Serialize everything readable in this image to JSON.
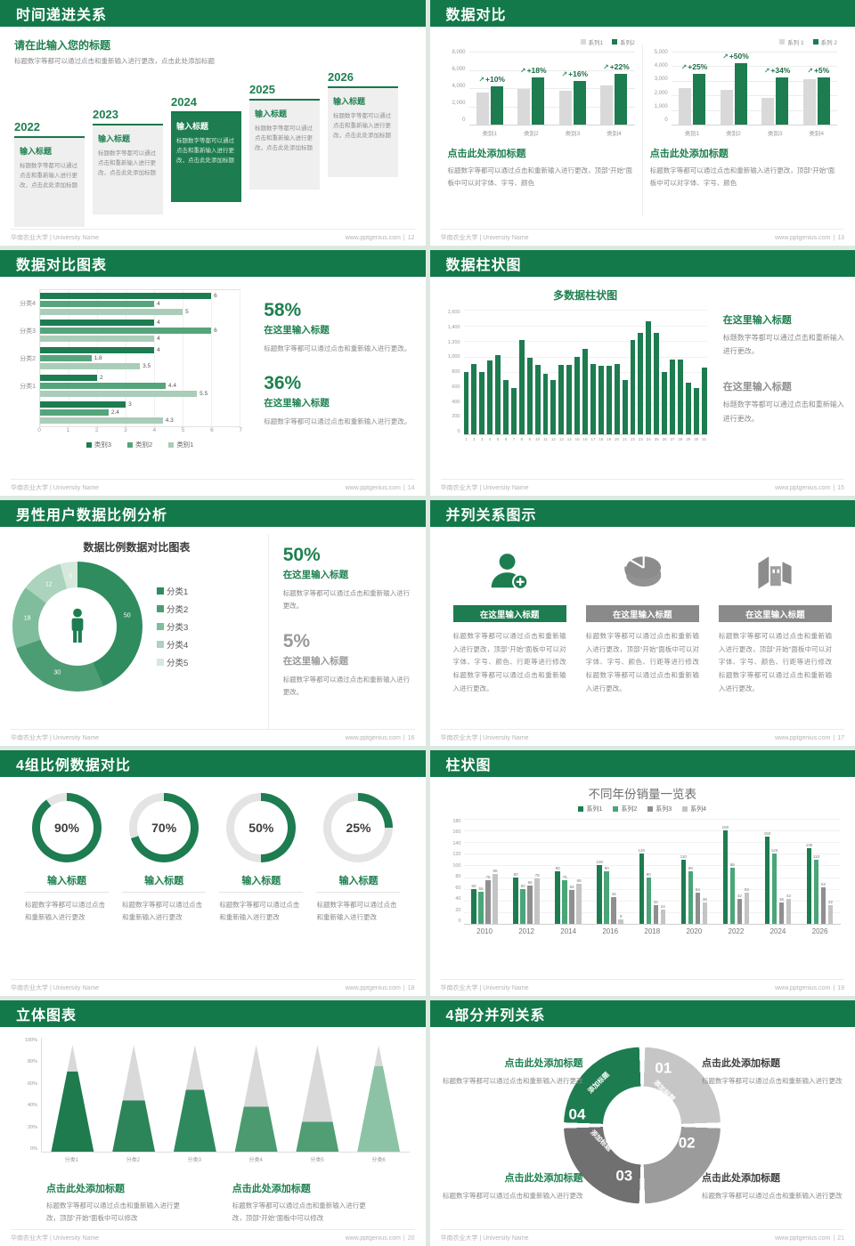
{
  "colors": {
    "header": "#14794a",
    "green_dark": "#1d7c50",
    "green_mid": "#55a47c",
    "green_light": "#a9cdb8",
    "gray_bar": "#d9d9d9",
    "gray_series": "#8f8f8f",
    "gray_light": "#c4c4c4"
  },
  "icons": {
    "growth_arrow": "↗"
  },
  "footer": {
    "org": "华南农业大学 | University Name",
    "site": "www.pptgenius.com"
  },
  "slides": [
    {
      "title": "时间递进关系",
      "page": "12",
      "heading": "请在此输入您的标题",
      "intro": "标题数字等都可以通过点击和重新输入进行更改，点击此处添加标题",
      "items": [
        {
          "year": "2022",
          "card_title": "输入标题",
          "card_text": "标题数字等都可以通过点击和重新输入进行更改，点击此处添加标题",
          "active": false
        },
        {
          "year": "2023",
          "card_title": "输入标题",
          "card_text": "标题数字等都可以通过点击和重新输入进行更改，点击此处添加标题",
          "active": false
        },
        {
          "year": "2024",
          "card_title": "输入标题",
          "card_text": "标题数字等都可以通过点击和重新输入进行更改，点击此处添加标题",
          "active": true
        },
        {
          "year": "2025",
          "card_title": "输入标题",
          "card_text": "标题数字等都可以通过点击和重新输入进行更改，点击此处添加标题",
          "active": false
        },
        {
          "year": "2026",
          "card_title": "输入标题",
          "card_text": "标题数字等都可以通过点击和重新输入进行更改，点击此处添加标题",
          "active": false
        }
      ]
    },
    {
      "title": "数据对比",
      "page": "13",
      "chart_data": [
        {
          "type": "bar",
          "legend": [
            "系列1",
            "系列2"
          ],
          "yticks": [
            "8,000",
            "6,000",
            "4,000",
            "2,000",
            "0"
          ],
          "ymax": 8000,
          "categories": [
            "类别1",
            "类别2",
            "类别3",
            "类别4"
          ],
          "series": [
            {
              "name": "系列1",
              "values": [
                3500,
                3900,
                3700,
                4300
              ]
            },
            {
              "name": "系列2",
              "values": [
                4200,
                5200,
                4800,
                5600
              ]
            }
          ],
          "growth": [
            "+10%",
            "+18%",
            "+16%",
            "+22%"
          ]
        },
        {
          "type": "bar",
          "legend": [
            "系列 1",
            "系列 2"
          ],
          "yticks": [
            "5,000",
            "4,000",
            "3,000",
            "2,000",
            "1,000",
            "0"
          ],
          "ymax": 5000,
          "categories": [
            "类别1",
            "类别2",
            "类别3",
            "类别4"
          ],
          "series": [
            {
              "name": "系列 1",
              "values": [
                2500,
                2350,
                1800,
                3100
              ]
            },
            {
              "name": "系列 2",
              "values": [
                3500,
                4200,
                3250,
                3250
              ]
            }
          ],
          "growth": [
            "+25%",
            "+50%",
            "+34%",
            "+5%"
          ]
        }
      ],
      "blocks": [
        {
          "heading": "点击此处添加标题",
          "text": "标题数字等都可以通过点击和重新输入进行更改，顶部“开始”面板中可以对字体、字号、颜色"
        },
        {
          "heading": "点击此处添加标题",
          "text": "标题数字等都可以通过点击和重新输入进行更改，顶部“开始”面板中可以对字体、字号、颜色"
        }
      ]
    },
    {
      "title": "数据对比图表",
      "page": "14",
      "chart_data": {
        "type": "hbar",
        "xmax": 7,
        "xticks": [
          "0",
          "1",
          "2",
          "3",
          "4",
          "5",
          "6",
          "7"
        ],
        "legend": [
          "类别3",
          "类别2",
          "类别1"
        ],
        "groups": [
          {
            "label": "分类4",
            "values": [
              6,
              4,
              5
            ]
          },
          {
            "label": "分类3",
            "values": [
              4,
              6,
              4
            ]
          },
          {
            "label": "分类2",
            "values": [
              4,
              1.8,
              3.5
            ]
          },
          {
            "label": "分类1",
            "values": [
              2,
              4.4,
              5.5
            ]
          },
          {
            "label": "",
            "values": [
              3,
              2.4,
              4.3
            ]
          }
        ]
      },
      "stats": [
        {
          "pct": "58%",
          "sub": "在这里输入标题",
          "text": "标题数字等都可以通过点击和重新输入进行更改。"
        },
        {
          "pct": "36%",
          "sub": "在这里输入标题",
          "text": "标题数字等都可以通过点击和重新输入进行更改。"
        }
      ]
    },
    {
      "title": "数据柱状图",
      "page": "15",
      "chart_data": {
        "type": "bar",
        "title": "多数据柱状图",
        "ymax": 1600,
        "yticks": [
          "1,600",
          "1,400",
          "1,200",
          "1,000",
          "800",
          "600",
          "400",
          "200",
          "0"
        ],
        "categories": [
          "1",
          "2",
          "3",
          "4",
          "5",
          "6",
          "7",
          "8",
          "9",
          "10",
          "11",
          "12",
          "13",
          "14",
          "15",
          "16",
          "17",
          "18",
          "19",
          "20",
          "21",
          "22",
          "23",
          "24",
          "25",
          "26",
          "27",
          "28",
          "29",
          "30",
          "31"
        ],
        "values": [
          800,
          900,
          800,
          950,
          1020,
          700,
          600,
          1210,
          980,
          890,
          780,
          700,
          890,
          890,
          990,
          1100,
          900,
          880,
          880,
          900,
          700,
          1210,
          1300,
          1450,
          1300,
          800,
          960,
          960,
          660,
          600,
          860
        ]
      },
      "blocks": [
        {
          "heading": "在这里输入标题",
          "text": "标题数字等都可以通过点击和重新输入进行更改。"
        },
        {
          "heading": "在这里输入标题",
          "text": "标题数字等都可以通过点击和重新输入进行更改。"
        }
      ]
    },
    {
      "title": "男性用户数据比例分析",
      "page": "16",
      "chart_data": {
        "type": "pie",
        "title": "数据比例数据对比图表",
        "labels": [
          "分类1",
          "分类2",
          "分类3",
          "分类4",
          "分类5"
        ],
        "values": [
          50,
          30,
          18,
          12,
          5
        ],
        "colors": [
          "#2f8c5e",
          "#4d9d74",
          "#7fbd9c",
          "#abd3bd",
          "#d5e9dd"
        ]
      },
      "stats": [
        {
          "pct": "50%",
          "sub": "在这里输入标题",
          "text": "标题数字等都可以通过点击和重新输入进行更改。"
        },
        {
          "pct": "5%",
          "sub": "在这里输入标题",
          "text": "标题数字等都可以通过点击和重新输入进行更改。"
        }
      ]
    },
    {
      "title": "并列关系图示",
      "page": "17",
      "columns": [
        {
          "icon": "nurse-add-icon",
          "title": "在这里输入标题",
          "accent": true,
          "text": "标题数字等都可以通过点击和重新输入进行更改，顶部“开始”面板中可以对字体、字号、颜色、行距等进行修改标题数字等都可以通过点击和重新输入进行更改。"
        },
        {
          "icon": "pie-chart-3d-icon",
          "title": "在这里输入标题",
          "accent": false,
          "text": "标题数字等都可以通过点击和重新输入进行更改，顶部“开始”面板中可以对字体、字号、颜色、行距等进行修改标题数字等都可以通过点击和重新输入进行更改。"
        },
        {
          "icon": "building-icon",
          "title": "在这里输入标题",
          "accent": false,
          "text": "标题数字等都可以通过点击和重新输入进行更改，顶部“开始”面板中可以对字体、字号、颜色、行距等进行修改标题数字等都可以通过点击和重新输入进行更改。"
        }
      ]
    },
    {
      "title": "4组比例数据对比",
      "page": "18",
      "rings": [
        {
          "pct": 90,
          "label": "90%",
          "title": "输入标题",
          "text": "标题数字等都可以通过点击和重新输入进行更改"
        },
        {
          "pct": 70,
          "label": "70%",
          "title": "输入标题",
          "text": "标题数字等都可以通过点击和重新输入进行更改"
        },
        {
          "pct": 50,
          "label": "50%",
          "title": "输入标题",
          "text": "标题数字等都可以通过点击和重新输入进行更改"
        },
        {
          "pct": 25,
          "label": "25%",
          "title": "输入标题",
          "text": "标题数字等都可以通过点击和重新输入进行更改"
        }
      ]
    },
    {
      "title": "柱状图",
      "page": "19",
      "chart_data": {
        "type": "bar",
        "title": "不同年份销量一览表",
        "ymax": 180,
        "yticks": [
          "180",
          "160",
          "140",
          "120",
          "100",
          "80",
          "60",
          "40",
          "20",
          "0"
        ],
        "categories": [
          "2010",
          "2012",
          "2014",
          "2016",
          "2018",
          "2020",
          "2022",
          "2024",
          "2026"
        ],
        "series": [
          {
            "name": "系列1",
            "color": "#1d7c50",
            "values": [
              60,
              80,
              90,
              100,
              120,
              110,
              160,
              150,
              130
            ]
          },
          {
            "name": "系列2",
            "color": "#4aa578",
            "values": [
              55,
              60,
              75,
              90,
              80,
              90,
              96,
              120,
              110
            ]
          },
          {
            "name": "系列3",
            "color": "#8f8f8f",
            "values": [
              75,
              65,
              58,
              46,
              32,
              54,
              42,
              36,
              62
            ]
          },
          {
            "name": "系列4",
            "color": "#c4c4c4",
            "values": [
              85,
              78,
              68,
              8,
              24,
              36,
              53,
              42,
              32
            ]
          }
        ]
      }
    },
    {
      "title": "立体图表",
      "page": "20",
      "chart_data": {
        "type": "cone",
        "yticks": [
          "100%",
          "80%",
          "60%",
          "40%",
          "20%",
          "0%"
        ],
        "cones": [
          {
            "label": "分类1",
            "fill": 75,
            "color": "#1e7b4e"
          },
          {
            "label": "分类2",
            "fill": 48,
            "color": "#2c8459"
          },
          {
            "label": "分类3",
            "fill": 58,
            "color": "#2e8a5e"
          },
          {
            "label": "分类4",
            "fill": 42,
            "color": "#4c9b70"
          },
          {
            "label": "分类5",
            "fill": 28,
            "color": "#519e74"
          },
          {
            "label": "分类6",
            "fill": 80,
            "color": "#8cc3a6"
          }
        ]
      },
      "blocks": [
        {
          "heading": "点击此处添加标题",
          "text": "标题数字等都可以通过点击和重新输入进行更改，顶部“开始”面板中可以修改"
        },
        {
          "heading": "点击此处添加标题",
          "text": "标题数字等都可以通过点击和重新输入进行更改，顶部“开始”面板中可以修改"
        }
      ]
    },
    {
      "title": "4部分并列关系",
      "page": "21",
      "wheel": {
        "segments": [
          {
            "num": "01",
            "label": "添加标题",
            "color": "#c6c6c6"
          },
          {
            "num": "02",
            "label": "添加标题",
            "color": "#9b9b9b"
          },
          {
            "num": "03",
            "label": "添加标题",
            "color": "#707070"
          },
          {
            "num": "04",
            "label": "添加标题",
            "color": "#1d7c50"
          }
        ]
      },
      "corners": [
        {
          "heading": "点击此处添加标题",
          "text": "标题数字等都可以通过点击和重新输入进行更改",
          "accent": true
        },
        {
          "heading": "点击此处添加标题",
          "text": "标题数字等都可以通过点击和重新输入进行更改",
          "accent": false
        },
        {
          "heading": "点击此处添加标题",
          "text": "标题数字等都可以通过点击和重新输入进行更改",
          "accent": true
        },
        {
          "heading": "点击此处添加标题",
          "text": "标题数字等都可以通过点击和重新输入进行更改",
          "accent": false
        }
      ]
    }
  ]
}
